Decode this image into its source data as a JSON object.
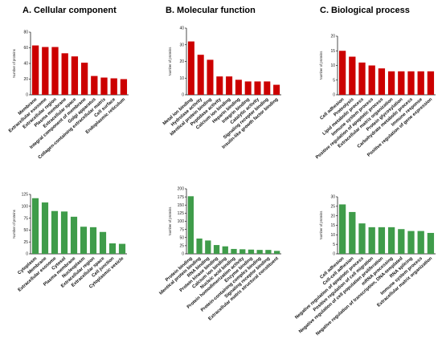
{
  "section_titles": [
    "A. Cellular component",
    "B. Molecular function",
    "C. Biological process"
  ],
  "colors": {
    "up": "#cc0000",
    "down": "#3f9c4a",
    "axis": "#000000"
  },
  "chart_data": [
    {
      "type": "bar",
      "color": "up",
      "ylabel": "Number of proteins",
      "ylim": [
        0,
        80
      ],
      "ticks": [
        0,
        20,
        40,
        60,
        80
      ],
      "categories": [
        "Membrane",
        "Extracellular exosome",
        "Extracellular region",
        "Plasma membrane",
        "Extracellular space",
        "Integral component of membrane",
        "Golgi apparatus",
        "Collagen-containing extracellular matrix",
        "Cell surface",
        "Endoplasmic reticulum"
      ],
      "values": [
        63,
        61,
        61,
        53,
        49,
        41,
        24,
        22,
        21,
        20
      ]
    },
    {
      "type": "bar",
      "color": "up",
      "ylabel": "Number of proteins",
      "ylim": [
        0,
        40
      ],
      "ticks": [
        0,
        10,
        20,
        30,
        40
      ],
      "categories": [
        "Metal ion binding",
        "Hydrolase activity",
        "Identical protein binding",
        "Peptidase activity",
        "Calcium ion binding",
        "Heparin binding",
        "Integrin binding",
        "Catalytic activity",
        "Signaling receptor binding",
        "Insulin-like growth factor binding"
      ],
      "values": [
        32,
        24,
        21,
        11,
        11,
        9,
        8,
        8,
        8,
        6
      ]
    },
    {
      "type": "bar",
      "color": "up",
      "ylabel": "Number of proteins",
      "ylim": [
        0,
        20
      ],
      "ticks": [
        0,
        5,
        10,
        15,
        20
      ],
      "categories": [
        "Cell adhesion",
        "Proteolysis",
        "Lipid metabolic process",
        "Immune system process",
        "Positive regulation of apoptotic process",
        "Extracellular matrix organization",
        "Protein glycosylation",
        "Carbohydrate metabolic process",
        "Immune response",
        "Positive regulation of gene expression"
      ],
      "values": [
        15,
        13,
        11,
        10,
        9,
        8,
        8,
        8,
        8,
        8
      ]
    },
    {
      "type": "bar",
      "color": "down",
      "ylabel": "Number of proteins",
      "ylim": [
        0,
        125
      ],
      "ticks": [
        0,
        25,
        50,
        75,
        100,
        125
      ],
      "categories": [
        "Cytoplasm",
        "Membrane",
        "Extracellular exosome",
        "Cytosol",
        "Plasma membrane",
        "Nucleoplasm",
        "Extracellular region",
        "Extracellular space",
        "Cell junction",
        "Cytoplasmic vesicle"
      ],
      "values": [
        117,
        108,
        90,
        89,
        78,
        57,
        56,
        46,
        22,
        21
      ]
    },
    {
      "type": "bar",
      "color": "down",
      "ylabel": "Number of proteins",
      "ylim": [
        0,
        200
      ],
      "ticks": [
        0,
        25,
        50,
        75,
        100,
        125,
        150,
        175,
        200
      ],
      "categories": [
        "Protein binding",
        "Identical protein binding",
        "RNA binding",
        "Protein kinase binding",
        "Calcium ion binding",
        "Nucleic acid binding",
        "Protein homodimerization activity",
        "Enzyme binding",
        "Protein-containing complex binding",
        "Signaling receptor binding",
        "Extracellular matrix structural constituent"
      ],
      "values": [
        177,
        47,
        41,
        27,
        23,
        15,
        14,
        13,
        12,
        12,
        9
      ]
    },
    {
      "type": "bar",
      "color": "down",
      "ylabel": "Number of proteins",
      "ylim": [
        0,
        30
      ],
      "ticks": [
        0,
        5,
        10,
        15,
        20,
        25,
        30
      ],
      "categories": [
        "Cell adhesion",
        "Cell-cell adhesion",
        "Negative regulation of apoptotic process",
        "Positive regulation of cell migration",
        "Negative regulation of cell population proliferation",
        "mRNA processing",
        "Negative regulation of transcription, DNA-templated",
        "RNA splicing",
        "Immune system process",
        "Extracellular matrix organization"
      ],
      "values": [
        26,
        22,
        16,
        14,
        14,
        14,
        13,
        12,
        12,
        11
      ]
    }
  ]
}
